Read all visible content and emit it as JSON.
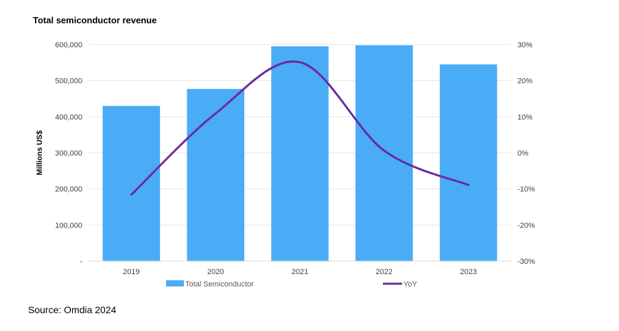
{
  "source": "Source: Omdia 2024",
  "colors": {
    "bars": "#4aabf7",
    "line": "#6a2a9a",
    "grid": "#e6e6e6"
  },
  "chart_data": {
    "type": "bar",
    "title": "Total semiconductor revenue",
    "categories": [
      "2019",
      "2020",
      "2021",
      "2022",
      "2023"
    ],
    "ylabel": "Millions US$",
    "ylim": [
      0,
      600000
    ],
    "y_ticks": [
      "-",
      "100,000",
      "200,000",
      "300,000",
      "400,000",
      "500,000",
      "600,000"
    ],
    "y2lim": [
      -30,
      30
    ],
    "y2_ticks": [
      "-30%",
      "-20%",
      "-10%",
      "0%",
      "10%",
      "20%",
      "30%"
    ],
    "grid": true,
    "legend_position": "bottom",
    "series": [
      {
        "name": "Total Semiconductor",
        "type": "bar",
        "axis": "left",
        "values": [
          430000,
          477000,
          595000,
          598000,
          545000
        ]
      },
      {
        "name": "YoY",
        "type": "line",
        "axis": "right",
        "smooth": true,
        "values": [
          -11.6,
          10.9,
          25.1,
          0.6,
          -8.9
        ]
      }
    ]
  }
}
